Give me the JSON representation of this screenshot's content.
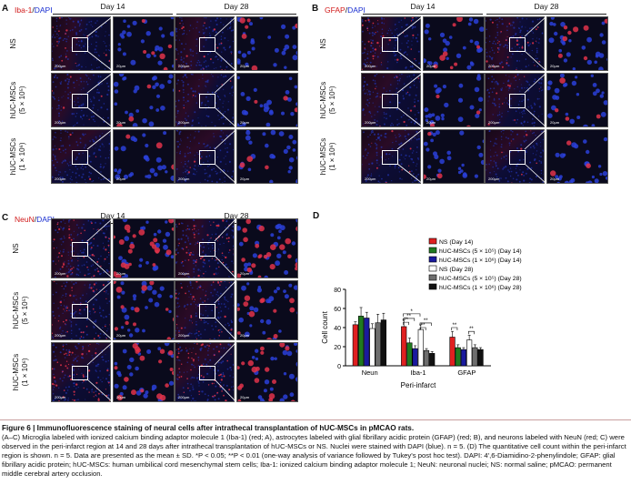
{
  "panels": {
    "A": {
      "letter": "A",
      "stain": "Iba-1",
      "sep": "/",
      "dapi": "DAPI"
    },
    "B": {
      "letter": "B",
      "stain": "GFAP",
      "sep": "/",
      "dapi": "DAPI"
    },
    "C": {
      "letter": "C",
      "stain": "NeuN",
      "sep": "/",
      "dapi": "DAPI"
    },
    "D": {
      "letter": "D"
    }
  },
  "days": [
    "Day 14",
    "Day 28"
  ],
  "rows": [
    "NS",
    "hUC-MSCs\n(5 × 10⁵)",
    "hUC-MSCs\n(1 × 10⁶)"
  ],
  "scalebars": {
    "overview": "200μm",
    "zoom": "20μm"
  },
  "chart_data": {
    "type": "bar",
    "categories": [
      "Neun",
      "Iba-1",
      "GFAP"
    ],
    "xlabel": "Peri-infarct",
    "ylabel": "Cell count",
    "ylim": [
      0,
      80
    ],
    "yticks": [
      "0",
      "20",
      "40",
      "60",
      "80"
    ],
    "legend_position": "top-right",
    "series": [
      {
        "name": "NS (Day 14)",
        "color": "#e02020",
        "values": [
          43,
          41,
          30
        ],
        "errors": [
          3,
          7,
          6
        ]
      },
      {
        "name": "hUC-MSCs (5 × 10⁵) (Day 14)",
        "color": "#1f7a1f",
        "values": [
          52,
          24,
          19
        ],
        "errors": [
          9,
          5,
          3
        ]
      },
      {
        "name": "hUC-MSCs (1 × 10⁶) (Day 14)",
        "color": "#1a1a9e",
        "values": [
          50,
          18,
          17
        ],
        "errors": [
          6,
          3,
          2
        ]
      },
      {
        "name": "NS (Day 28)",
        "color": "#ffffff",
        "values": [
          39,
          38,
          27
        ],
        "errors": [
          5,
          5,
          5
        ]
      },
      {
        "name": "hUC-MSCs (5 × 10⁵) (Day 28)",
        "color": "#6e6e6e",
        "values": [
          45,
          16,
          19
        ],
        "errors": [
          9,
          2,
          3
        ]
      },
      {
        "name": "hUC-MSCs (1 × 10⁶) (Day 28)",
        "color": "#111111",
        "values": [
          48,
          13,
          17
        ],
        "errors": [
          7,
          2,
          2
        ]
      }
    ],
    "significance": [
      "**",
      "**",
      "**",
      "**",
      "*",
      "**",
      "**"
    ]
  },
  "caption": {
    "title": "Figure 6 | Immunofluorescence staining of neural cells after intrathecal transplantation of hUC-MSCs in pMCAO rats.",
    "body": "(A–C) Microglia labeled with ionized calcium binding adaptor molecule 1 (Iba-1) (red; A), astrocytes labeled with glial fibrillary acidic protein (GFAP) (red; B), and neurons labeled with NeuN (red; C) were observed in the peri-infarct region at 14 and 28 days after intrathecal transplantation of hUC-MSCs or NS. Nuclei were stained with DAPI (blue). n = 5. (D) The quantitative cell count within the peri-infarct region is shown. n = 5. Data are presented as the mean ± SD. *P < 0.05; **P < 0.01 (one-way analysis of variance followed by Tukey's post hoc test). DAPI: 4′,6-Diamidino-2-phenylindole; GFAP: glial fibrillary acidic protein; hUC-MSCs: human umbilical cord mesenchymal stem cells; Iba-1: ionized calcium binding adaptor molecule 1; NeuN: neuronal nuclei; NS: normal saline; pMCAO: permanent middle cerebral artery occlusion."
  }
}
